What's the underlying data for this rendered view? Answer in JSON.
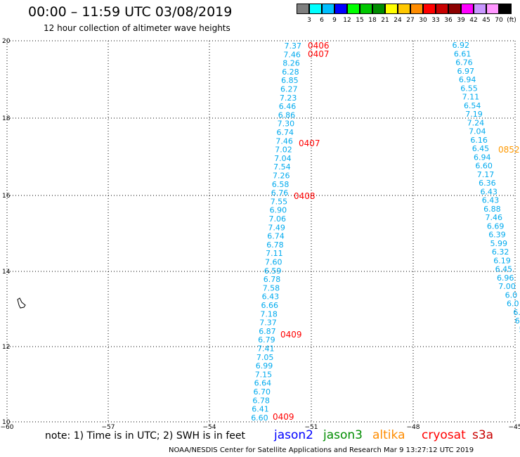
{
  "header": {
    "title": "00:00 – 11:59 UTC 03/08/2019",
    "subtitle": "12 hour collection of altimeter wave heights"
  },
  "colorbar": {
    "labels": [
      "3",
      "6",
      "9",
      "12",
      "15",
      "18",
      "21",
      "24",
      "27",
      "30",
      "33",
      "36",
      "39",
      "42",
      "45",
      "70",
      "(ft)"
    ],
    "colors": [
      "#7f7f7f",
      "#00ffff",
      "#00bfff",
      "#0000ff",
      "#00ff00",
      "#00c800",
      "#008c00",
      "#ffff00",
      "#ffc800",
      "#ff8c00",
      "#ff0000",
      "#c80000",
      "#8c0000",
      "#ff00ff",
      "#c896ff",
      "#ff96ff",
      "#000000"
    ]
  },
  "axes": {
    "x_ticks": [
      "−60",
      "−57",
      "−54",
      "−51",
      "−48",
      "−45"
    ],
    "y_ticks": [
      "20",
      "18",
      "16",
      "14",
      "12",
      "10"
    ]
  },
  "track1": {
    "values": [
      "7.37",
      "7.46",
      "8.26",
      "6.28",
      "6.85",
      "6.27",
      "7.23",
      "6.46",
      "6.86",
      "7.30",
      "6.74",
      "7.46",
      "7.02",
      "7.04",
      "7.54",
      "7.26",
      "6.58",
      "6.76",
      "7.55",
      "6.90",
      "7.06",
      "7.49",
      "6.74",
      "6.78",
      "7.11",
      "7.60",
      "6.59",
      "6.78",
      "7.58",
      "6.43",
      "6.66",
      "7.18",
      "7.37",
      "6.87",
      "6.79",
      "7.41",
      "7.05",
      "6.99",
      "7.15",
      "6.64",
      "6.70",
      "6.78",
      "6.41",
      "6.60"
    ],
    "time_labels": [
      "0406",
      "0407",
      "0407",
      "0408",
      "0409",
      "0409"
    ]
  },
  "track2": {
    "values": [
      "6.92",
      "6.61",
      "6.76",
      "6.97",
      "6.94",
      "6.55",
      "7.11",
      "6.54",
      "7.19",
      "7.24",
      "7.04",
      "6.16",
      "6.45",
      "6.94",
      "6.60",
      "7.17",
      "6.36",
      "6.43",
      "6.43",
      "6.88",
      "7.46",
      "6.69",
      "6.39",
      "5.99",
      "6.32",
      "6.19",
      "6.45",
      "6.96",
      "7.00",
      "6.0",
      "6.0",
      "6.",
      "6.",
      "5",
      "6"
    ],
    "time_labels": [
      "0852"
    ]
  },
  "footer": {
    "note": "note:  1) Time is in UTC;  2) SWH is in feet",
    "credit": "NOAA/NESDIS Center for Satellite Applications and Research    Mar  9 13:27:12 UTC 2019",
    "satellites": [
      {
        "name": "jason2",
        "color": "#0000ff"
      },
      {
        "name": "jason3",
        "color": "#008c00"
      },
      {
        "name": "altika",
        "color": "#ff8c00"
      },
      {
        "name": "cryosat",
        "color": "#ff0000"
      },
      {
        "name": "s3a",
        "color": "#c80000"
      }
    ]
  },
  "colors": {
    "track_values": "#00aaee",
    "time_red": "#ff0000",
    "time_orange": "#ff9900",
    "grid": "#000000"
  }
}
